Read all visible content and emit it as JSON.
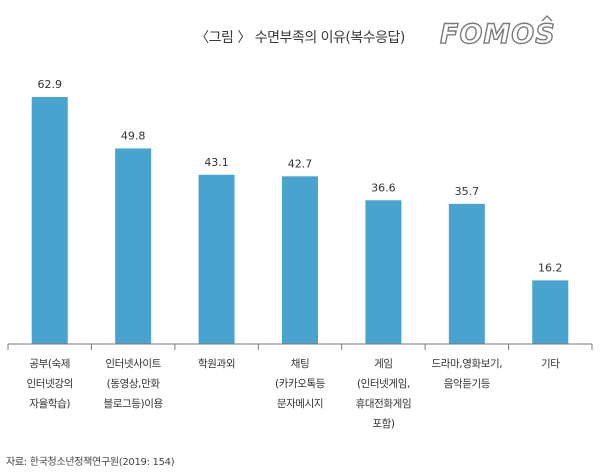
{
  "title": "〈그림 〉 수면부족의 이유(복수응답)",
  "logo_text": "FOMOS",
  "source": "자료: 한국청소년정책연구원(2019: 154)",
  "colors": {
    "bar": "#48a3cf",
    "axis": "#777777",
    "text": "#333333"
  },
  "chart_data": {
    "type": "bar",
    "categories": [
      [
        "공부(숙제",
        "인터넷강의",
        "자율학습)"
      ],
      [
        "인터넷사이트",
        "(동영상,만화",
        "블로그등)이용"
      ],
      [
        "학원과외"
      ],
      [
        "채팅",
        "(카카오톡등",
        "문자메시지"
      ],
      [
        "게임",
        "(인터넷게임,",
        "휴대전화게임",
        "포함)"
      ],
      [
        "드라마,영화보기,",
        "음악듣기등"
      ],
      [
        "기타"
      ]
    ],
    "values": [
      62.9,
      49.8,
      43.1,
      42.7,
      36.6,
      35.7,
      16.2
    ],
    "ylim": [
      0,
      70
    ],
    "grid": false,
    "legend": "none"
  }
}
